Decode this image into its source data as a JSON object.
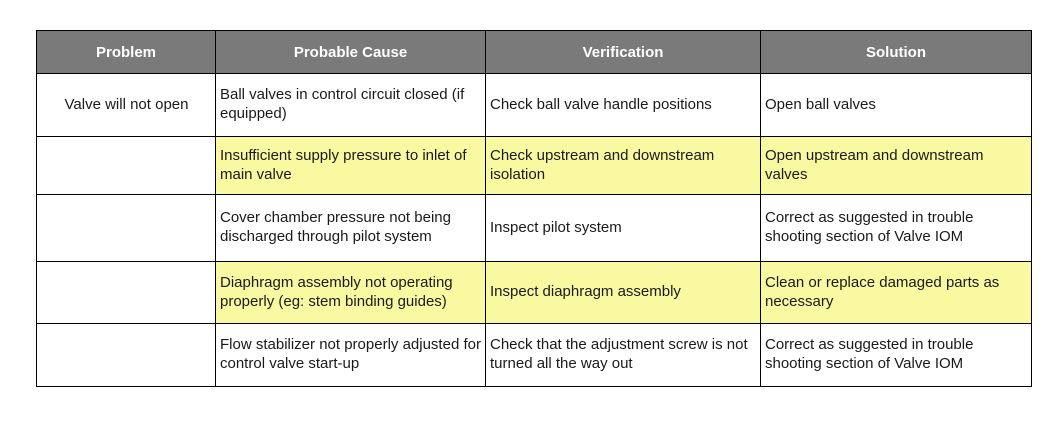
{
  "table": {
    "headers": [
      "Problem",
      "Probable Cause",
      "Verification",
      "Solution"
    ],
    "problem_label": "Valve will not open",
    "rows": [
      {
        "cause": "Ball valves in control circuit closed (if equipped)",
        "verification": "Check ball valve handle positions",
        "solution": "Open ball valves",
        "highlighted": false
      },
      {
        "cause": "Insufficient supply pressure to inlet of main valve",
        "verification": "Check upstream and downstream isolation",
        "solution": "Open upstream and downstream valves",
        "highlighted": true
      },
      {
        "cause": "Cover chamber pressure not being discharged through pilot system",
        "verification": "Inspect pilot system",
        "solution": "Correct as suggested in trouble shooting section of Valve IOM",
        "highlighted": false
      },
      {
        "cause": "Diaphragm assembly not operating properly (eg: stem binding guides)",
        "verification": "Inspect diaphragm assembly",
        "solution": "Clean or replace damaged parts as necessary",
        "highlighted": true
      },
      {
        "cause": "Flow stabilizer not properly adjusted for control valve start-up",
        "verification": "Check that the adjustment screw is not turned all the way out",
        "solution": "Correct as suggested in trouble shooting section of Valve IOM",
        "highlighted": false
      }
    ],
    "colors": {
      "header_bg": "#7a7a7a",
      "header_text": "#ffffff",
      "problem_cell_bg": "#c0c0c0",
      "highlight_bg": "#f9f9a2",
      "border": "#000000"
    }
  }
}
